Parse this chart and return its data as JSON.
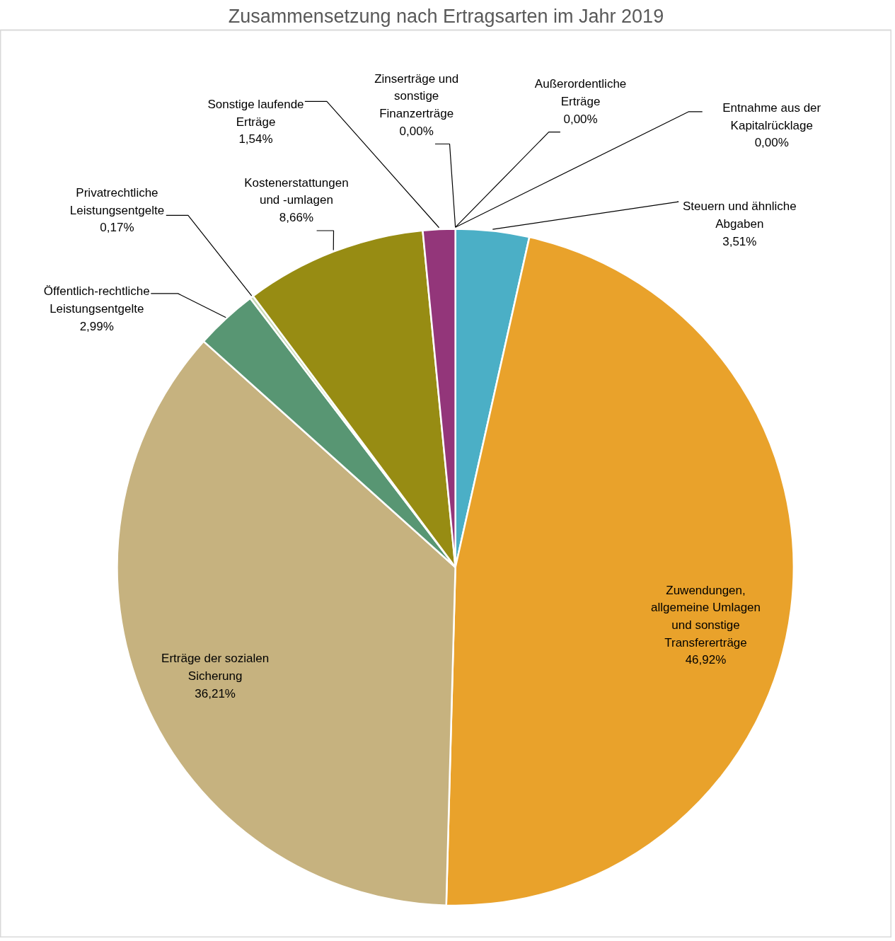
{
  "chart_data": {
    "type": "pie",
    "title": "Zusammensetzung nach Ertragsarten im Jahr 2019",
    "categories": [
      "Steuern und ähnliche Abgaben",
      "Zuwendungen, allgemeine Umlagen und sonstige Transfererträge",
      "Erträge der sozialen Sicherung",
      "Öffentlich-rechtliche Leistungsentgelte",
      "Privatrechtliche Leistungsentgelte",
      "Kostenerstattungen und -umlagen",
      "Sonstige laufende Erträge",
      "Zinserträge und sonstige Finanzerträge",
      "Außerordentliche Erträge",
      "Entnahme aus der Kapitalrücklage"
    ],
    "values": [
      3.51,
      46.92,
      36.21,
      2.99,
      0.17,
      8.66,
      1.54,
      0.0,
      0.0,
      0.0
    ],
    "value_labels": [
      "3,51%",
      "46,92%",
      "36,21%",
      "2,99%",
      "0,17%",
      "8,66%",
      "1,54%",
      "0,00%",
      "0,00%",
      "0,00%"
    ],
    "colors": [
      "#4bafc6",
      "#e9a22b",
      "#c6b27f",
      "#589673",
      "#c9d9b8",
      "#978c13",
      "#93367a",
      "#7f7f7f",
      "#5b9bd5",
      "#a5a5a5"
    ]
  }
}
